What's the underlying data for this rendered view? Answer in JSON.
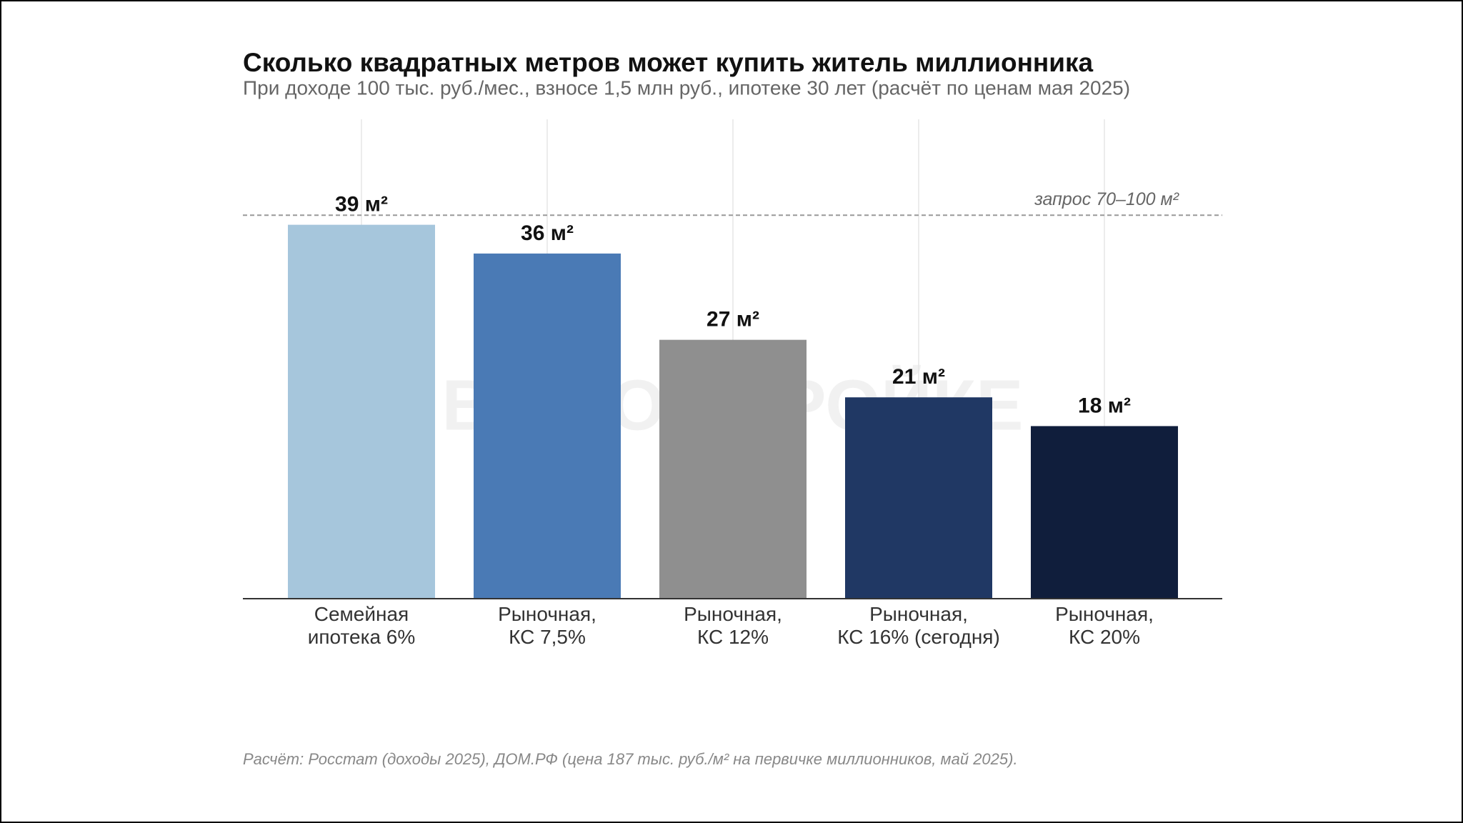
{
  "chart_data": {
    "type": "bar",
    "title": "Сколько квадратных метров может купить житель миллионника",
    "subtitle": "При доходе 100 тыс. руб./мес., взносе 1,5 млн руб., ипотеке 30 лет (расчёт по ценам мая 2025)",
    "categories": [
      "Семейная\nипотека 6%",
      "Рыночная,\nКС 7,5%",
      "Рыночная,\nКС 12%",
      "Рыночная,\nКС 16% (сегодня)",
      "Рыночная,\nКС 20%"
    ],
    "values": [
      39,
      36,
      27,
      21,
      18
    ],
    "value_labels": [
      "39 м²",
      "36 м²",
      "27 м²",
      "21 м²",
      "18 м²"
    ],
    "colors": [
      "#a6c6dc",
      "#4a7ab5",
      "#8f8f8f",
      "#203864",
      "#101e3c"
    ],
    "ylim": [
      0,
      50
    ],
    "reference_line": {
      "value": 40,
      "label": "запрос 70–100 м²"
    },
    "watermark": "ВСЕ О СТРОЙКЕ",
    "source": "Расчёт: Росстат (доходы 2025), ДОМ.РФ (цена 187 тыс. руб./м² на первичке миллионников, май 2025).",
    "grid": true
  }
}
